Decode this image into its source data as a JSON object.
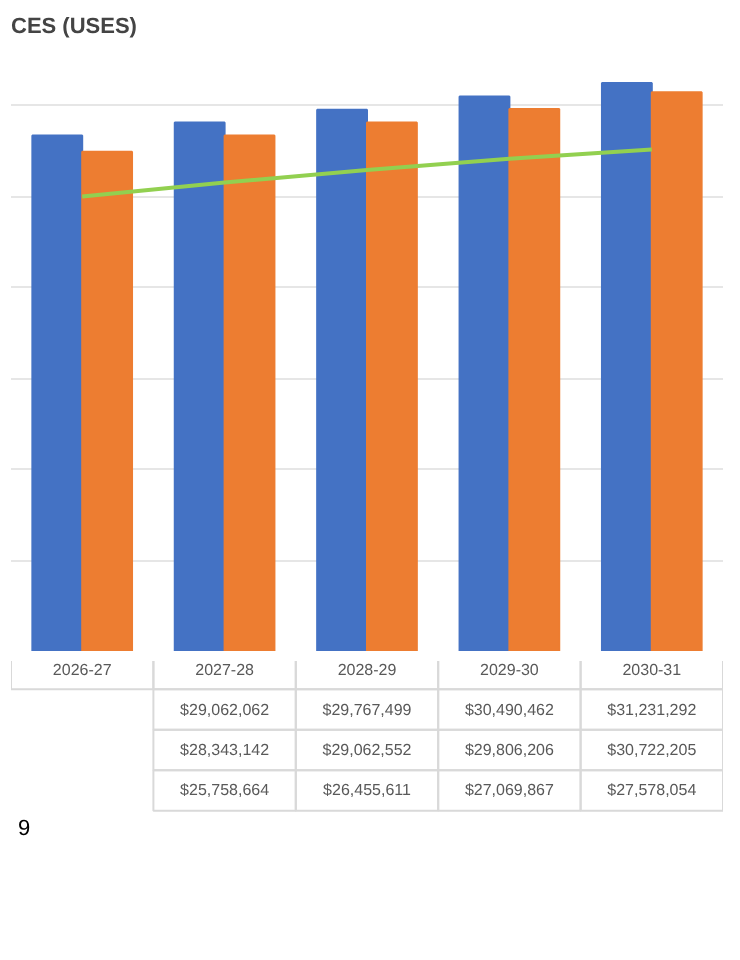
{
  "chart_data": {
    "type": "bar",
    "title": "CES (USES)",
    "categories": [
      "2026-27",
      "2027-28",
      "2028-29",
      "2029-30",
      "2030-31"
    ],
    "series": [
      {
        "color": "#4472c4",
        "values": [
          28350000,
          29062062,
          29767499,
          30490462,
          31231292
        ],
        "value_labels": [
          null,
          "$29,062,062",
          "$29,767,499",
          "$30,490,462",
          "$31,231,292"
        ]
      },
      {
        "color": "#ed7d31",
        "values": [
          27450000,
          28343142,
          29062552,
          29806206,
          30722205
        ],
        "value_labels": [
          null,
          "$28,343,142",
          "$29,062,552",
          "$29,806,206",
          "$30,722,205"
        ]
      },
      {
        "type": "line",
        "color": "#92d050",
        "values": [
          25000000,
          25758664,
          26455611,
          27069867,
          27578054
        ],
        "value_labels": [
          null,
          "$25,758,664",
          "$26,455,611",
          "$27,069,867",
          "$27,578,054"
        ]
      }
    ],
    "grid": "y",
    "tick_labels": false,
    "annotations": [
      "9"
    ]
  }
}
